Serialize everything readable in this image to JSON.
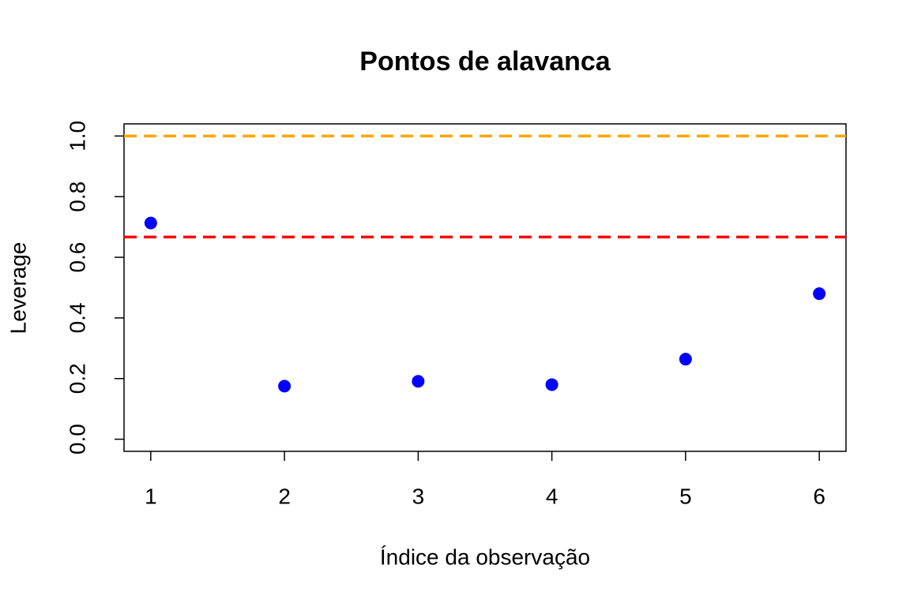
{
  "chart_data": {
    "type": "scatter",
    "title": "Pontos de alavanca",
    "xlabel": "Índice da observação",
    "ylabel": "Leverage",
    "x": [
      1,
      2,
      3,
      4,
      5,
      6
    ],
    "values": [
      0.713,
      0.175,
      0.191,
      0.18,
      0.264,
      0.48
    ],
    "color": "blue",
    "xlim": [
      0.8,
      6.2
    ],
    "ylim": [
      -0.04,
      1.04
    ],
    "xticks": [
      1,
      2,
      3,
      4,
      5,
      6
    ],
    "yticks": [
      {
        "value": 0,
        "label": "0.0"
      },
      0.2,
      0.4,
      0.6,
      0.8,
      {
        "value": 1,
        "label": "1.0"
      }
    ],
    "hlines": [
      {
        "value": 0.667,
        "color": "red"
      },
      {
        "value": 1,
        "color": "orange"
      }
    ],
    "line_style": "dashed"
  }
}
